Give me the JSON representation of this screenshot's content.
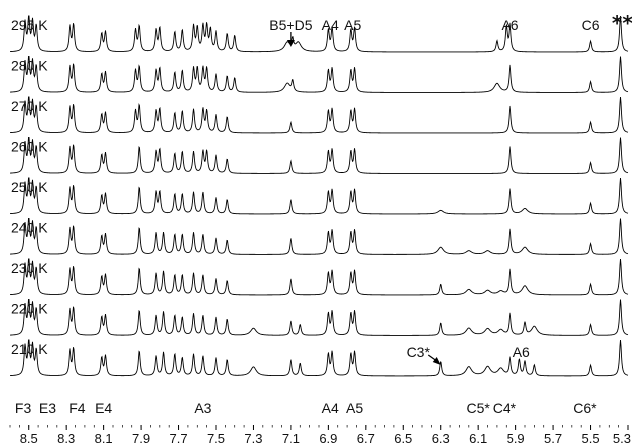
{
  "chart_data": {
    "type": "line",
    "title": "",
    "xlabel": "",
    "ylabel": "",
    "x_axis": {
      "min_ppm": 5.3,
      "max_ppm": 8.6,
      "reversed": true,
      "ticks": [
        {
          "value": 8.5,
          "label": "8.5"
        },
        {
          "value": 8.3,
          "label": "8.3"
        },
        {
          "value": 8.1,
          "label": "8.1"
        },
        {
          "value": 7.9,
          "label": "7.9"
        },
        {
          "value": 7.7,
          "label": "7.7"
        },
        {
          "value": 7.5,
          "label": "7.5"
        },
        {
          "value": 7.3,
          "label": "7.3"
        },
        {
          "value": 7.1,
          "label": "7.1"
        },
        {
          "value": 6.9,
          "label": "6.9"
        },
        {
          "value": 6.7,
          "label": "6.7"
        },
        {
          "value": 6.5,
          "label": "6.5"
        },
        {
          "value": 6.3,
          "label": "6.3"
        },
        {
          "value": 6.1,
          "label": "6.1"
        },
        {
          "value": 5.9,
          "label": "5.9"
        },
        {
          "value": 5.7,
          "label": "5.7"
        },
        {
          "value": 5.5,
          "label": "5.5"
        },
        {
          "value": 5.3,
          "label": "5.3"
        }
      ]
    },
    "series": [
      {
        "name": "295 K",
        "peaks": [
          [
            8.52,
            0.8
          ],
          [
            8.5,
            0.9
          ],
          [
            8.48,
            0.8
          ],
          [
            8.46,
            0.7
          ],
          [
            8.28,
            0.7
          ],
          [
            8.26,
            0.75
          ],
          [
            8.11,
            0.5
          ],
          [
            8.09,
            0.55
          ],
          [
            7.93,
            0.6
          ],
          [
            7.91,
            0.7
          ],
          [
            7.82,
            0.6
          ],
          [
            7.8,
            0.65
          ],
          [
            7.72,
            0.55
          ],
          [
            7.68,
            0.6
          ],
          [
            7.62,
            0.7
          ],
          [
            7.6,
            0.65
          ],
          [
            7.57,
            0.7
          ],
          [
            7.55,
            0.7
          ],
          [
            7.53,
            0.6
          ],
          [
            7.5,
            0.55
          ],
          [
            7.44,
            0.5
          ],
          [
            7.4,
            0.45
          ],
          [
            7.12,
            0.25
          ],
          [
            7.09,
            0.3
          ],
          [
            7.06,
            0.25
          ],
          [
            6.9,
            0.6
          ],
          [
            6.88,
            0.65
          ],
          [
            6.78,
            0.6
          ],
          [
            6.76,
            0.65
          ],
          [
            6.0,
            0.3
          ],
          [
            5.95,
            0.7
          ],
          [
            5.93,
            0.75
          ],
          [
            5.5,
            0.3
          ],
          [
            5.34,
            1.0
          ]
        ]
      },
      {
        "name": "280 K",
        "peaks": [
          [
            8.52,
            0.8
          ],
          [
            8.5,
            0.9
          ],
          [
            8.48,
            0.8
          ],
          [
            8.46,
            0.7
          ],
          [
            8.28,
            0.7
          ],
          [
            8.26,
            0.75
          ],
          [
            8.11,
            0.5
          ],
          [
            8.09,
            0.55
          ],
          [
            7.93,
            0.6
          ],
          [
            7.91,
            0.7
          ],
          [
            7.82,
            0.6
          ],
          [
            7.8,
            0.65
          ],
          [
            7.72,
            0.55
          ],
          [
            7.68,
            0.6
          ],
          [
            7.62,
            0.65
          ],
          [
            7.6,
            0.65
          ],
          [
            7.57,
            0.65
          ],
          [
            7.55,
            0.65
          ],
          [
            7.5,
            0.5
          ],
          [
            7.44,
            0.45
          ],
          [
            7.4,
            0.4
          ],
          [
            7.12,
            0.25
          ],
          [
            7.09,
            0.3
          ],
          [
            6.9,
            0.6
          ],
          [
            6.88,
            0.65
          ],
          [
            6.78,
            0.6
          ],
          [
            6.76,
            0.65
          ],
          [
            6.0,
            0.25
          ],
          [
            5.93,
            0.75
          ],
          [
            5.5,
            0.3
          ],
          [
            5.34,
            1.0
          ]
        ]
      },
      {
        "name": "270 K",
        "peaks": [
          [
            8.52,
            0.8
          ],
          [
            8.5,
            0.9
          ],
          [
            8.48,
            0.8
          ],
          [
            8.46,
            0.7
          ],
          [
            8.28,
            0.7
          ],
          [
            8.26,
            0.75
          ],
          [
            8.11,
            0.5
          ],
          [
            8.09,
            0.55
          ],
          [
            7.93,
            0.6
          ],
          [
            7.91,
            0.75
          ],
          [
            7.82,
            0.6
          ],
          [
            7.8,
            0.65
          ],
          [
            7.72,
            0.55
          ],
          [
            7.68,
            0.6
          ],
          [
            7.62,
            0.65
          ],
          [
            7.57,
            0.65
          ],
          [
            7.55,
            0.6
          ],
          [
            7.5,
            0.5
          ],
          [
            7.44,
            0.45
          ],
          [
            7.1,
            0.3
          ],
          [
            6.9,
            0.6
          ],
          [
            6.88,
            0.65
          ],
          [
            6.78,
            0.6
          ],
          [
            6.76,
            0.65
          ],
          [
            5.93,
            0.75
          ],
          [
            5.5,
            0.3
          ],
          [
            5.34,
            1.0
          ]
        ]
      },
      {
        "name": "260 K",
        "peaks": [
          [
            8.52,
            0.8
          ],
          [
            8.5,
            0.9
          ],
          [
            8.48,
            0.8
          ],
          [
            8.46,
            0.7
          ],
          [
            8.28,
            0.7
          ],
          [
            8.26,
            0.75
          ],
          [
            8.11,
            0.5
          ],
          [
            8.09,
            0.55
          ],
          [
            7.91,
            0.75
          ],
          [
            7.82,
            0.6
          ],
          [
            7.8,
            0.65
          ],
          [
            7.72,
            0.55
          ],
          [
            7.68,
            0.6
          ],
          [
            7.62,
            0.6
          ],
          [
            7.57,
            0.6
          ],
          [
            7.55,
            0.6
          ],
          [
            7.5,
            0.5
          ],
          [
            7.44,
            0.4
          ],
          [
            7.1,
            0.35
          ],
          [
            6.9,
            0.6
          ],
          [
            6.88,
            0.65
          ],
          [
            6.78,
            0.6
          ],
          [
            6.76,
            0.65
          ],
          [
            5.93,
            0.75
          ],
          [
            5.5,
            0.3
          ],
          [
            5.34,
            1.0
          ]
        ]
      },
      {
        "name": "250 K",
        "peaks": [
          [
            8.52,
            0.8
          ],
          [
            8.5,
            0.9
          ],
          [
            8.48,
            0.8
          ],
          [
            8.46,
            0.7
          ],
          [
            8.28,
            0.7
          ],
          [
            8.26,
            0.75
          ],
          [
            8.11,
            0.5
          ],
          [
            8.09,
            0.55
          ],
          [
            7.91,
            0.75
          ],
          [
            7.82,
            0.6
          ],
          [
            7.8,
            0.6
          ],
          [
            7.72,
            0.55
          ],
          [
            7.68,
            0.55
          ],
          [
            7.62,
            0.6
          ],
          [
            7.57,
            0.6
          ],
          [
            7.5,
            0.45
          ],
          [
            7.44,
            0.4
          ],
          [
            7.1,
            0.4
          ],
          [
            6.9,
            0.6
          ],
          [
            6.88,
            0.65
          ],
          [
            6.78,
            0.6
          ],
          [
            6.76,
            0.65
          ],
          [
            6.3,
            0.1
          ],
          [
            5.93,
            0.7
          ],
          [
            5.85,
            0.15
          ],
          [
            5.5,
            0.3
          ],
          [
            5.34,
            1.0
          ]
        ]
      },
      {
        "name": "240 K",
        "peaks": [
          [
            8.52,
            0.8
          ],
          [
            8.5,
            0.9
          ],
          [
            8.48,
            0.8
          ],
          [
            8.46,
            0.7
          ],
          [
            8.28,
            0.7
          ],
          [
            8.26,
            0.75
          ],
          [
            8.11,
            0.5
          ],
          [
            8.09,
            0.55
          ],
          [
            7.91,
            0.75
          ],
          [
            7.82,
            0.6
          ],
          [
            7.78,
            0.6
          ],
          [
            7.72,
            0.55
          ],
          [
            7.68,
            0.55
          ],
          [
            7.62,
            0.6
          ],
          [
            7.57,
            0.55
          ],
          [
            7.5,
            0.45
          ],
          [
            7.44,
            0.4
          ],
          [
            7.1,
            0.45
          ],
          [
            6.9,
            0.6
          ],
          [
            6.88,
            0.65
          ],
          [
            6.78,
            0.6
          ],
          [
            6.76,
            0.65
          ],
          [
            6.3,
            0.2
          ],
          [
            6.15,
            0.1
          ],
          [
            6.05,
            0.1
          ],
          [
            5.93,
            0.7
          ],
          [
            5.85,
            0.2
          ],
          [
            5.5,
            0.3
          ],
          [
            5.34,
            1.0
          ]
        ]
      },
      {
        "name": "230 K",
        "peaks": [
          [
            8.52,
            0.8
          ],
          [
            8.5,
            0.9
          ],
          [
            8.48,
            0.8
          ],
          [
            8.46,
            0.7
          ],
          [
            8.28,
            0.7
          ],
          [
            8.26,
            0.75
          ],
          [
            8.11,
            0.5
          ],
          [
            8.09,
            0.55
          ],
          [
            7.91,
            0.75
          ],
          [
            7.82,
            0.6
          ],
          [
            7.78,
            0.65
          ],
          [
            7.72,
            0.55
          ],
          [
            7.68,
            0.55
          ],
          [
            7.62,
            0.6
          ],
          [
            7.57,
            0.55
          ],
          [
            7.5,
            0.45
          ],
          [
            7.44,
            0.4
          ],
          [
            7.1,
            0.45
          ],
          [
            6.9,
            0.6
          ],
          [
            6.88,
            0.65
          ],
          [
            6.78,
            0.6
          ],
          [
            6.76,
            0.65
          ],
          [
            6.3,
            0.3
          ],
          [
            6.15,
            0.15
          ],
          [
            6.05,
            0.12
          ],
          [
            5.98,
            0.1
          ],
          [
            5.93,
            0.7
          ],
          [
            5.85,
            0.25
          ],
          [
            5.5,
            0.3
          ],
          [
            5.34,
            1.0
          ]
        ]
      },
      {
        "name": "220 K",
        "peaks": [
          [
            8.52,
            0.8
          ],
          [
            8.5,
            0.9
          ],
          [
            8.48,
            0.8
          ],
          [
            8.46,
            0.7
          ],
          [
            8.28,
            0.7
          ],
          [
            8.26,
            0.75
          ],
          [
            8.11,
            0.5
          ],
          [
            8.09,
            0.55
          ],
          [
            7.91,
            0.7
          ],
          [
            7.82,
            0.55
          ],
          [
            7.78,
            0.65
          ],
          [
            7.72,
            0.55
          ],
          [
            7.68,
            0.5
          ],
          [
            7.62,
            0.6
          ],
          [
            7.57,
            0.55
          ],
          [
            7.5,
            0.5
          ],
          [
            7.44,
            0.45
          ],
          [
            7.3,
            0.2
          ],
          [
            7.1,
            0.4
          ],
          [
            7.05,
            0.3
          ],
          [
            6.9,
            0.6
          ],
          [
            6.88,
            0.65
          ],
          [
            6.78,
            0.6
          ],
          [
            6.76,
            0.65
          ],
          [
            6.3,
            0.35
          ],
          [
            6.15,
            0.2
          ],
          [
            6.05,
            0.18
          ],
          [
            5.98,
            0.15
          ],
          [
            5.93,
            0.6
          ],
          [
            5.85,
            0.35
          ],
          [
            5.8,
            0.25
          ],
          [
            5.5,
            0.3
          ],
          [
            5.34,
            1.0
          ]
        ]
      },
      {
        "name": "210 K",
        "peaks": [
          [
            8.52,
            0.8
          ],
          [
            8.5,
            0.9
          ],
          [
            8.48,
            0.8
          ],
          [
            8.46,
            0.7
          ],
          [
            8.28,
            0.7
          ],
          [
            8.26,
            0.75
          ],
          [
            8.11,
            0.5
          ],
          [
            8.09,
            0.55
          ],
          [
            7.91,
            0.7
          ],
          [
            7.82,
            0.55
          ],
          [
            7.78,
            0.65
          ],
          [
            7.72,
            0.6
          ],
          [
            7.68,
            0.5
          ],
          [
            7.62,
            0.6
          ],
          [
            7.57,
            0.55
          ],
          [
            7.5,
            0.5
          ],
          [
            7.44,
            0.45
          ],
          [
            7.3,
            0.25
          ],
          [
            7.1,
            0.45
          ],
          [
            7.05,
            0.35
          ],
          [
            6.9,
            0.6
          ],
          [
            6.88,
            0.65
          ],
          [
            6.78,
            0.6
          ],
          [
            6.76,
            0.65
          ],
          [
            6.3,
            0.4
          ],
          [
            6.15,
            0.25
          ],
          [
            6.05,
            0.25
          ],
          [
            5.98,
            0.2
          ],
          [
            5.93,
            0.5
          ],
          [
            5.88,
            0.45
          ],
          [
            5.85,
            0.4
          ],
          [
            5.8,
            0.3
          ],
          [
            5.5,
            0.3
          ],
          [
            5.34,
            1.0
          ]
        ]
      }
    ],
    "annotations": {
      "top": [
        {
          "text": "B5+D5",
          "ppm": 7.1,
          "arrow": true
        },
        {
          "text": "A4",
          "ppm": 6.89
        },
        {
          "text": "A5",
          "ppm": 6.77
        },
        {
          "text": "A6",
          "ppm": 5.93
        },
        {
          "text": "C6",
          "ppm": 5.5
        },
        {
          "text": "**",
          "ppm": 5.33
        }
      ],
      "bottom_row_labels": [
        {
          "text": "C3*",
          "ppm": 6.42,
          "arrow": true
        },
        {
          "text": "A6",
          "ppm": 5.87
        }
      ],
      "bottom": [
        {
          "text": "F3",
          "ppm": 8.53
        },
        {
          "text": "E3",
          "ppm": 8.4
        },
        {
          "text": "F4",
          "ppm": 8.24
        },
        {
          "text": "E4",
          "ppm": 8.1
        },
        {
          "text": "A3",
          "ppm": 7.57
        },
        {
          "text": "A4",
          "ppm": 6.89
        },
        {
          "text": "A5",
          "ppm": 6.76
        },
        {
          "text": "C5*",
          "ppm": 6.1
        },
        {
          "text": "C4*",
          "ppm": 5.96
        },
        {
          "text": "C6*",
          "ppm": 5.53
        }
      ]
    }
  }
}
